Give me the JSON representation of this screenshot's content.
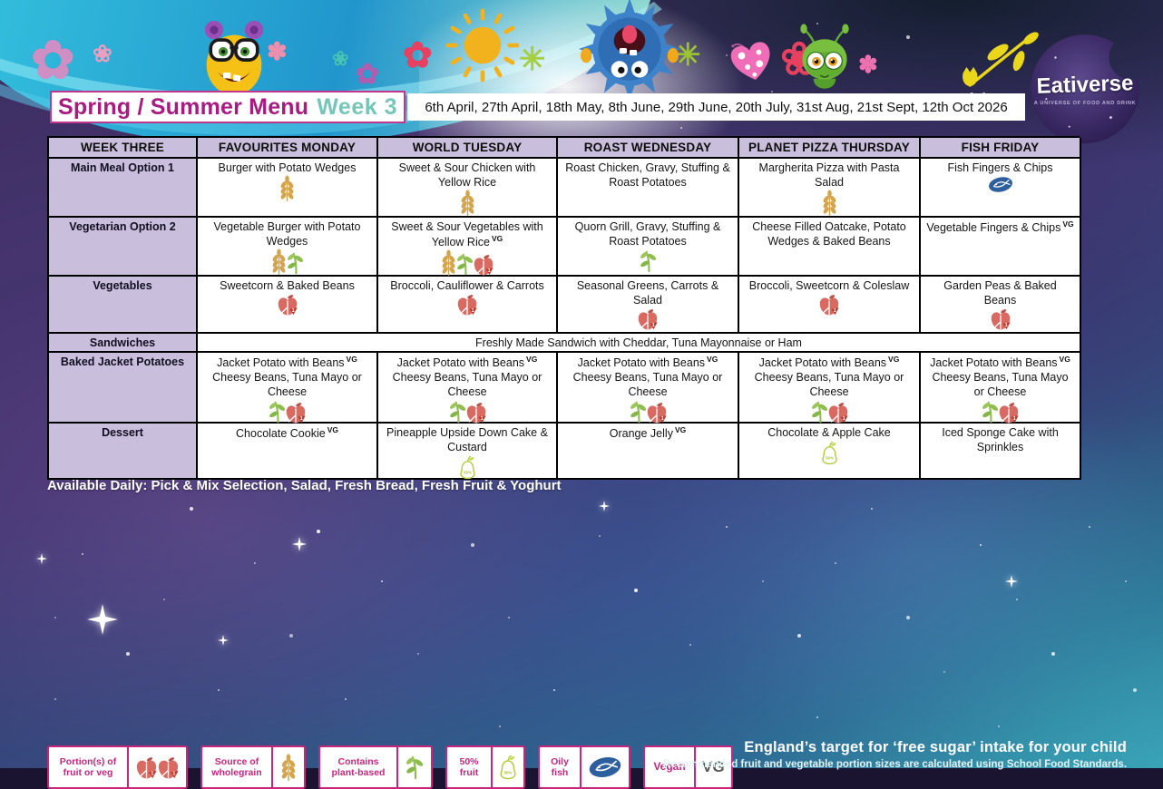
{
  "header": {
    "title": "Spring / Summer Menu",
    "week": "Week 3",
    "dates": "6th April, 27th April, 18th May, 8th June, 29th June, 20th July, 31st Aug, 21st Sept, 12th Oct 2026"
  },
  "logo": {
    "name": "Eativerse",
    "tagline": "A UNIVERSE OF FOOD AND DRINK"
  },
  "menu_table": {
    "columns": [
      "WEEK THREE",
      "FAVOURITES MONDAY",
      "WORLD TUESDAY",
      "ROAST WEDNESDAY",
      "PLANET PIZZA THURSDAY",
      "FISH FRIDAY"
    ],
    "rows": [
      {
        "label": "Main Meal Option 1",
        "cells": [
          {
            "text": "Burger with Potato Wedges",
            "icons": [
              "wheat"
            ]
          },
          {
            "text": "Sweet & Sour Chicken with Yellow Rice",
            "icons": [
              "wheat"
            ]
          },
          {
            "text": "Roast Chicken, Gravy, Stuffing & Roast Potatoes",
            "icons": []
          },
          {
            "text": "Margherita Pizza with Pasta Salad",
            "icons": [
              "wheat"
            ]
          },
          {
            "text": "Fish Fingers & Chips",
            "icons": [
              "fish"
            ]
          }
        ]
      },
      {
        "label": "Vegetarian Option 2",
        "cells": [
          {
            "text": "Vegetable Burger with Potato Wedges",
            "icons": [
              "wheat",
              "plant"
            ]
          },
          {
            "text": "Sweet & Sour Vegetables with Yellow Rice",
            "vg": "VG",
            "icons": [
              "wheat",
              "plant",
              "apple"
            ]
          },
          {
            "text": "Quorn Grill, Gravy, Stuffing & Roast Potatoes",
            "icons": [
              "plant"
            ]
          },
          {
            "text": "Cheese Filled Oatcake, Potato Wedges & Baked Beans",
            "icons": []
          },
          {
            "text": "Vegetable Fingers & Chips",
            "vg": "VG",
            "icons": []
          }
        ]
      },
      {
        "label": "Vegetables",
        "cells": [
          {
            "text": "Sweetcorn & Baked Beans",
            "icons": [
              "apple"
            ]
          },
          {
            "text": "Broccoli, Cauliflower & Carrots",
            "icons": [
              "apple"
            ]
          },
          {
            "text": "Seasonal Greens, Carrots & Salad",
            "icons": [
              "apple"
            ]
          },
          {
            "text": "Broccoli, Sweetcorn & Coleslaw",
            "icons": [
              "apple"
            ]
          },
          {
            "text": "Garden Peas & Baked Beans",
            "icons": [
              "apple"
            ]
          }
        ]
      },
      {
        "label": "Sandwiches",
        "span_text": "Freshly Made Sandwich with Cheddar, Tuna Mayonnaise or Ham"
      },
      {
        "label": "Baked Jacket Potatoes",
        "cells": [
          {
            "text": "Jacket Potato with Beans",
            "vg": "VG",
            "text2": "Cheesy Beans, Tuna Mayo or Cheese",
            "icons": [
              "plant",
              "apple"
            ]
          },
          {
            "text": "Jacket Potato with Beans",
            "vg": "VG",
            "text2": "Cheesy Beans, Tuna Mayo or Cheese",
            "icons": [
              "plant",
              "apple"
            ]
          },
          {
            "text": "Jacket Potato with Beans",
            "vg": "VG",
            "text2": "Cheesy Beans, Tuna Mayo or Cheese",
            "icons": [
              "plant",
              "apple"
            ]
          },
          {
            "text": "Jacket Potato with Beans",
            "vg": "VG",
            "text2": "Cheesy Beans, Tuna Mayo or Cheese",
            "icons": [
              "plant",
              "apple"
            ]
          },
          {
            "text": "Jacket Potato with Beans",
            "vg": "VG",
            "text2": "Cheesy Beans, Tuna Mayo or Cheese",
            "icons": [
              "plant",
              "apple"
            ]
          }
        ]
      },
      {
        "label": "Dessert",
        "cells": [
          {
            "text": "Chocolate Cookie",
            "vg": "VG",
            "icons": []
          },
          {
            "text": "Pineapple Upside Down Cake & Custard",
            "icons": [
              "pear"
            ]
          },
          {
            "text": "Orange Jelly",
            "vg": "VG",
            "icons": []
          },
          {
            "text": "Chocolate & Apple Cake",
            "icons": [
              "pear"
            ]
          },
          {
            "text": "Iced Sponge Cake with Sprinkles",
            "icons": []
          }
        ]
      }
    ]
  },
  "available_daily": "Available Daily: Pick & Mix Selection, Salad, Fresh Bread, Fresh Fruit & Yoghurt",
  "legend": [
    {
      "label": "Portion(s) of fruit or veg",
      "icon": "apple"
    },
    {
      "label": "Source of wholegrain",
      "icon": "wheat"
    },
    {
      "label": "Contains plant-based",
      "icon": "plant"
    },
    {
      "label": "50% fruit",
      "icon": "pear"
    },
    {
      "label": "Oily fish",
      "icon": "fish"
    },
    {
      "label": "Vegan",
      "icon": "vegan",
      "badge": "VG"
    }
  ],
  "footer": {
    "line1": "England’s target for ‘free sugar’ intake for your child",
    "line2": "Recommended fruit and vegetable portion sizes are calculated using School Food Standards."
  },
  "colors": {
    "title_magenta": "#a81c82",
    "week_teal": "#74c7b8",
    "table_header_lavender": "#c9bedb",
    "legend_magenta": "#c7257e",
    "wheat_gold": "#d3a44c",
    "plant_green": "#8fbe4f",
    "apple_red": "#d96a62",
    "fish_blue": "#2d5e9e",
    "pear_lime": "#b5cc3d",
    "swirl_blue": "#2196cd",
    "space_purple": "#43336c"
  }
}
